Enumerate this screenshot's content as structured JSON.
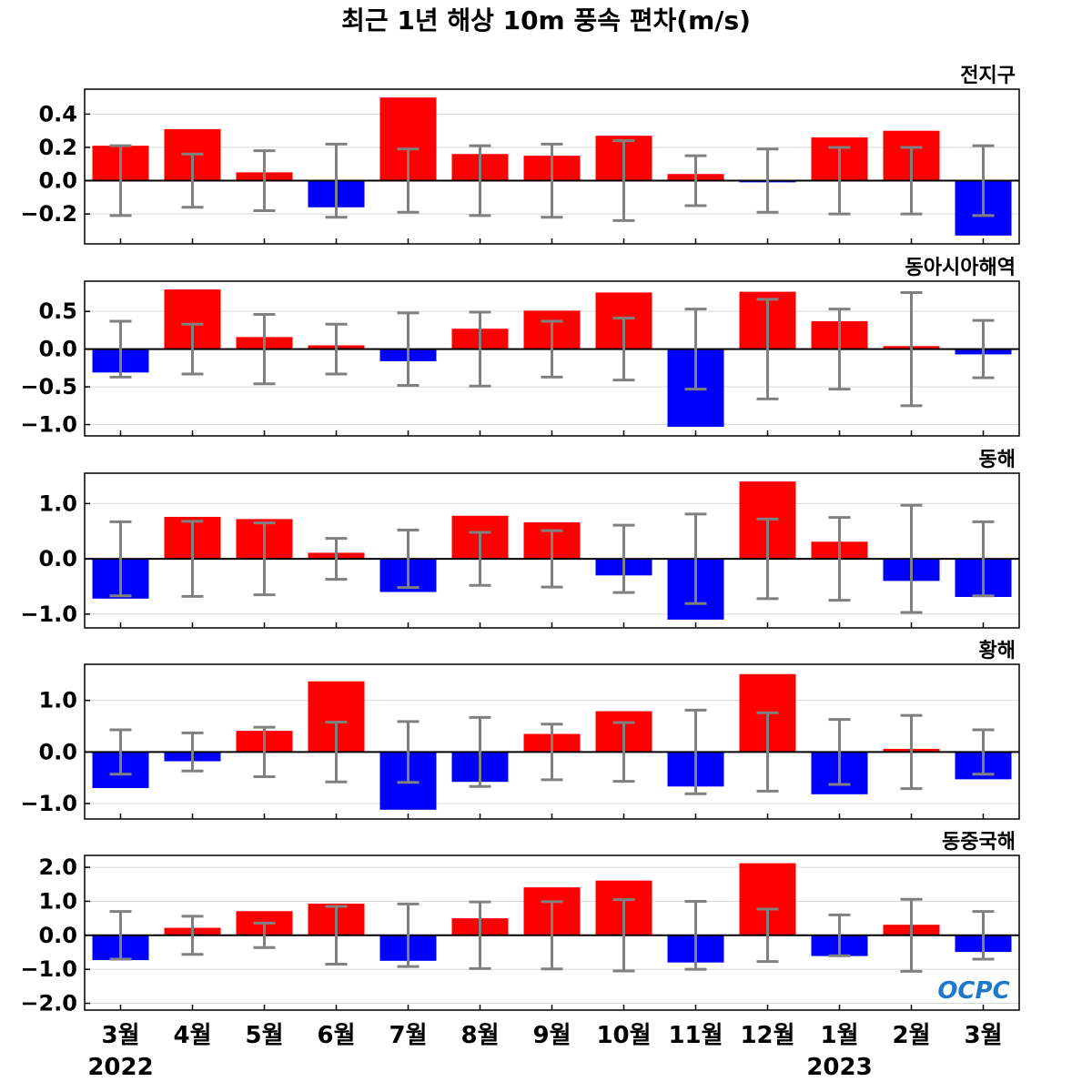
{
  "title": "최근 1년 해상 10m 풍속 편차(m/s)",
  "logo": "OCPC",
  "colors": {
    "positive": "#ff0000",
    "negative": "#0000ff",
    "errorbar": "#808080",
    "grid": "#d9d9d9",
    "zero": "#000000"
  },
  "chart_data": {
    "type": "bar",
    "categories": [
      "3월",
      "4월",
      "5월",
      "6월",
      "7월",
      "8월",
      "9월",
      "10월",
      "11월",
      "12월",
      "1월",
      "2월",
      "3월"
    ],
    "year_labels": [
      {
        "index": 0,
        "text": "2022"
      },
      {
        "index": 10,
        "text": "2023"
      }
    ],
    "grid": true,
    "panels": [
      {
        "name": "전지구",
        "ylim": [
          -0.38,
          0.55
        ],
        "yticks": [
          0.4,
          0.2,
          0.0,
          -0.2
        ],
        "ytick_labels": [
          "0.4",
          "0.2",
          "0.0",
          "−0.2"
        ],
        "values": [
          0.21,
          0.31,
          0.05,
          -0.16,
          0.5,
          0.16,
          0.15,
          0.27,
          0.04,
          -0.01,
          0.26,
          0.3,
          -0.33
        ],
        "errors": [
          0.21,
          0.16,
          0.18,
          0.22,
          0.19,
          0.21,
          0.22,
          0.24,
          0.15,
          0.19,
          0.2,
          0.2,
          0.21
        ]
      },
      {
        "name": "동아시아해역",
        "ylim": [
          -1.15,
          0.9
        ],
        "yticks": [
          0.5,
          0.0,
          -0.5,
          -1.0
        ],
        "ytick_labels": [
          "0.5",
          "0.0",
          "−0.5",
          "−1.0"
        ],
        "values": [
          -0.31,
          0.79,
          0.16,
          0.05,
          -0.16,
          0.27,
          0.51,
          0.75,
          -1.03,
          0.76,
          0.37,
          0.04,
          -0.07
        ],
        "errors": [
          0.37,
          0.33,
          0.46,
          0.33,
          0.48,
          0.49,
          0.37,
          0.41,
          0.53,
          0.66,
          0.53,
          0.75,
          0.38
        ]
      },
      {
        "name": "동해",
        "ylim": [
          -1.25,
          1.55
        ],
        "yticks": [
          1.0,
          0.0,
          -1.0
        ],
        "ytick_labels": [
          "1.0",
          "0.0",
          "−1.0"
        ],
        "values": [
          -0.72,
          0.76,
          0.72,
          0.11,
          -0.6,
          0.78,
          0.66,
          -0.3,
          -1.1,
          1.4,
          0.31,
          -0.4,
          -0.69
        ],
        "errors": [
          0.67,
          0.68,
          0.65,
          0.37,
          0.52,
          0.48,
          0.51,
          0.61,
          0.81,
          0.72,
          0.75,
          0.97,
          0.67
        ]
      },
      {
        "name": "황해",
        "ylim": [
          -1.3,
          1.7
        ],
        "yticks": [
          1.0,
          0.0,
          -1.0
        ],
        "ytick_labels": [
          "1.0",
          "0.0",
          "−1.0"
        ],
        "values": [
          -0.7,
          -0.18,
          0.41,
          1.37,
          -1.12,
          -0.58,
          0.35,
          0.79,
          -0.67,
          1.51,
          -0.82,
          0.06,
          -0.53
        ],
        "errors": [
          0.43,
          0.37,
          0.48,
          0.58,
          0.59,
          0.67,
          0.54,
          0.57,
          0.81,
          0.76,
          0.63,
          0.71,
          0.43
        ]
      },
      {
        "name": "동중국해",
        "ylim": [
          -2.2,
          2.35
        ],
        "yticks": [
          2.0,
          1.0,
          0.0,
          -1.0,
          -2.0
        ],
        "ytick_labels": [
          "2.0",
          "1.0",
          "0.0",
          "−1.0",
          "−2.0"
        ],
        "values": [
          -0.73,
          0.22,
          0.71,
          0.93,
          -0.75,
          0.5,
          1.41,
          1.61,
          -0.8,
          2.12,
          -0.61,
          0.31,
          -0.49
        ],
        "errors": [
          0.7,
          0.56,
          0.36,
          0.85,
          0.92,
          0.98,
          0.99,
          1.05,
          1.0,
          0.77,
          0.6,
          1.06,
          0.7
        ]
      }
    ]
  }
}
